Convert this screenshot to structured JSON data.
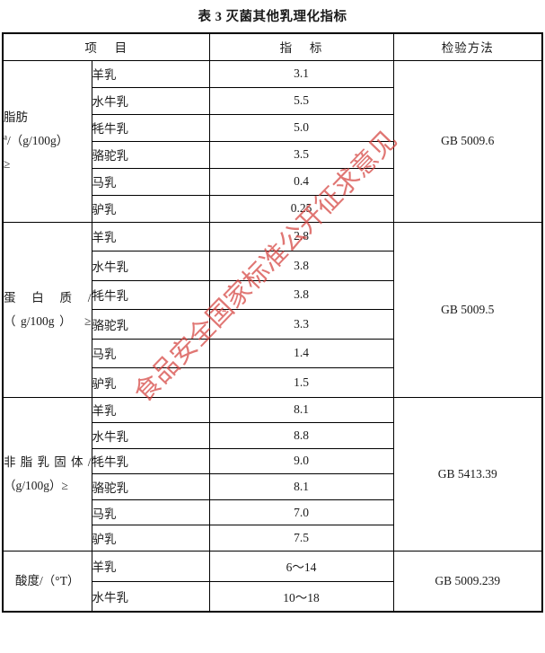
{
  "title": "表 3 灭菌其他乳理化指标",
  "watermark": {
    "text": "食品安全国家标准公开征求意见",
    "color": "#d5423e"
  },
  "colors": {
    "border": "#000000",
    "text": "#1a1a1a",
    "background": "#ffffff"
  },
  "table": {
    "header": {
      "item": "项　 目",
      "indicator": "指　 标",
      "method": "检验方法"
    },
    "sections": [
      {
        "label": {
          "pre": "脂肪",
          "sup": "a",
          "rest": "/（g/100g）",
          "line2": "≥"
        },
        "method": "GB 5009.6",
        "rows": [
          {
            "milk": "羊乳",
            "value": "3.1"
          },
          {
            "milk": "水牛乳",
            "value": "5.5"
          },
          {
            "milk": "牦牛乳",
            "value": "5.0"
          },
          {
            "milk": "骆驼乳",
            "value": "3.5"
          },
          {
            "milk": "马乳",
            "value": "0.4"
          },
          {
            "milk": "驴乳",
            "value": "0.25"
          }
        ]
      },
      {
        "label": {
          "pre": "蛋 白 质 /",
          "sup": "",
          "rest": "",
          "line2": "（g/100g） ≥"
        },
        "method": "GB 5009.5",
        "rows": [
          {
            "milk": "羊乳",
            "value": "2.8"
          },
          {
            "milk": "水牛乳",
            "value": "3.8"
          },
          {
            "milk": "牦牛乳",
            "value": "3.8"
          },
          {
            "milk": "骆驼乳",
            "value": "3.3"
          },
          {
            "milk": "马乳",
            "value": "1.4"
          },
          {
            "milk": "驴乳",
            "value": "1.5"
          }
        ]
      },
      {
        "label": {
          "pre": "非 脂 乳 固 体 /",
          "sup": "",
          "rest": "",
          "line2": "（g/100g）≥"
        },
        "method": "GB 5413.39",
        "rows": [
          {
            "milk": "羊乳",
            "value": "8.1"
          },
          {
            "milk": "水牛乳",
            "value": "8.8"
          },
          {
            "milk": "牦牛乳",
            "value": "9.0"
          },
          {
            "milk": "骆驼乳",
            "value": "8.1"
          },
          {
            "milk": "马乳",
            "value": "7.0"
          },
          {
            "milk": "驴乳",
            "value": "7.5"
          }
        ]
      },
      {
        "label": {
          "pre": "酸度/（°T）",
          "sup": "",
          "rest": "",
          "line2": ""
        },
        "method": "GB 5009.239",
        "rows": [
          {
            "milk": "羊乳",
            "value": "6～14"
          },
          {
            "milk": "水牛乳",
            "value": "10～18"
          }
        ]
      }
    ]
  }
}
